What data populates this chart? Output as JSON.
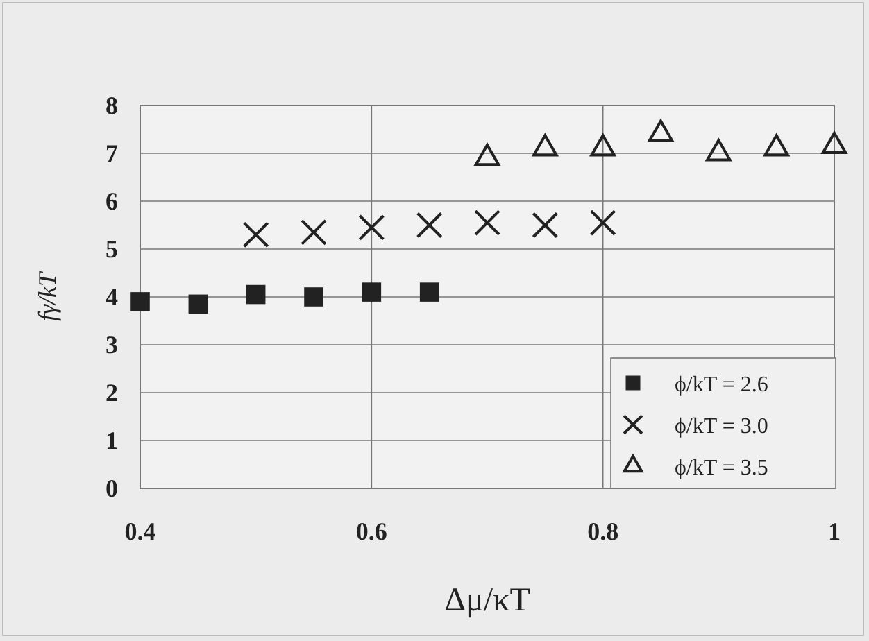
{
  "chart_data": {
    "type": "scatter",
    "xlabel": "Δμ/κT",
    "ylabel": "fγ/kT",
    "xlim": [
      0.4,
      1
    ],
    "xticks": [
      0.4,
      0.6,
      0.8,
      1
    ],
    "ylim": [
      0,
      8
    ],
    "yticks": [
      0,
      1,
      2,
      3,
      4,
      5,
      6,
      7,
      8
    ],
    "grid": true,
    "legend": "bottom right",
    "series": [
      {
        "name": "ϕ/kT = 2.6",
        "color": "#222222",
        "marker": "square",
        "x": [
          0.4,
          0.45,
          0.5,
          0.55,
          0.6,
          0.65
        ],
        "values": [
          3.9,
          3.85,
          4.05,
          4.0,
          4.1,
          4.1
        ]
      },
      {
        "name": "ϕ/kT = 3.0",
        "color": "#222222",
        "marker": "cross",
        "x": [
          0.5,
          0.55,
          0.6,
          0.65,
          0.7,
          0.75,
          0.8
        ],
        "values": [
          5.3,
          5.35,
          5.45,
          5.5,
          5.55,
          5.5,
          5.55
        ]
      },
      {
        "name": "ϕ/kT = 3.5",
        "color": "#222222",
        "marker": "triangle",
        "x": [
          0.7,
          0.75,
          0.8,
          0.85,
          0.9,
          0.95,
          1
        ],
        "values": [
          6.9,
          7.1,
          7.1,
          7.4,
          7.0,
          7.1,
          7.15
        ]
      }
    ]
  }
}
